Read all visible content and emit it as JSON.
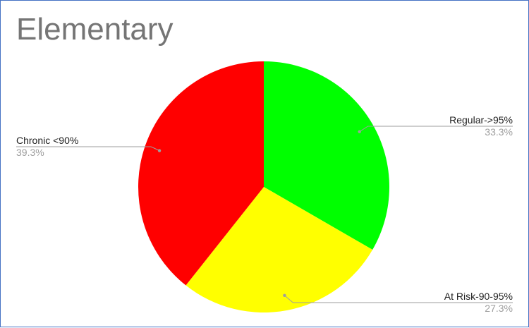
{
  "chart_data": {
    "type": "pie",
    "title": "Elementary",
    "slices": [
      {
        "label": "Regular->95%",
        "value": 33.3,
        "percent_label": "33.3%",
        "color": "#00ff00"
      },
      {
        "label": "At Risk-90-95%",
        "value": 27.3,
        "percent_label": "27.3%",
        "color": "#ffff00"
      },
      {
        "label": "Chronic <90%",
        "value": 39.3,
        "percent_label": "39.3%",
        "color": "#ff0000"
      }
    ],
    "start_angle_deg": 0,
    "direction": "clockwise",
    "legend": "none"
  }
}
